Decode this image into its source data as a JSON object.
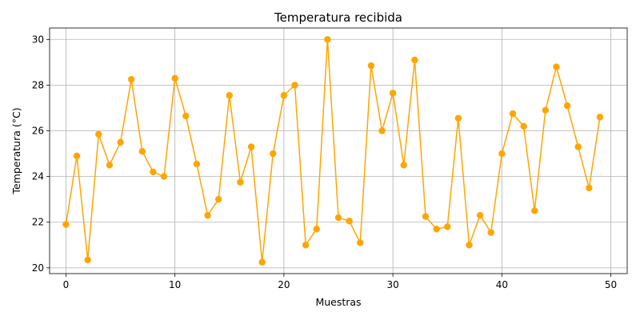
{
  "chart_data": {
    "type": "line",
    "title": "Temperatura recibida",
    "xlabel": "Muestras",
    "ylabel": "Temperatura (°C)",
    "xlim": [
      -1.5,
      51.5
    ],
    "ylim": [
      19.75,
      30.5
    ],
    "xticks": [
      0,
      10,
      20,
      30,
      40,
      50
    ],
    "yticks": [
      20,
      22,
      24,
      26,
      28,
      30
    ],
    "grid": true,
    "color": "#FFA500",
    "marker": "circle",
    "x": [
      0,
      1,
      2,
      3,
      4,
      5,
      6,
      7,
      8,
      9,
      10,
      11,
      12,
      13,
      14,
      15,
      16,
      17,
      18,
      19,
      20,
      21,
      22,
      23,
      24,
      25,
      26,
      27,
      28,
      29,
      30,
      31,
      32,
      33,
      34,
      35,
      36,
      37,
      38,
      39,
      40,
      41,
      42,
      43,
      44,
      45,
      46,
      47,
      48,
      49
    ],
    "values": [
      21.9,
      24.9,
      20.35,
      25.85,
      24.5,
      25.5,
      28.25,
      25.1,
      24.2,
      24.0,
      28.3,
      26.65,
      24.55,
      22.3,
      23.0,
      27.55,
      23.75,
      25.3,
      20.25,
      25.0,
      27.55,
      28.0,
      21.0,
      21.7,
      30.0,
      22.2,
      22.05,
      21.1,
      28.85,
      26.0,
      27.65,
      24.5,
      29.1,
      22.25,
      21.7,
      21.8,
      26.55,
      21.0,
      22.3,
      21.55,
      25.0,
      26.75,
      26.2,
      22.5,
      26.9,
      28.8,
      27.1,
      25.3,
      23.5,
      26.6
    ]
  }
}
